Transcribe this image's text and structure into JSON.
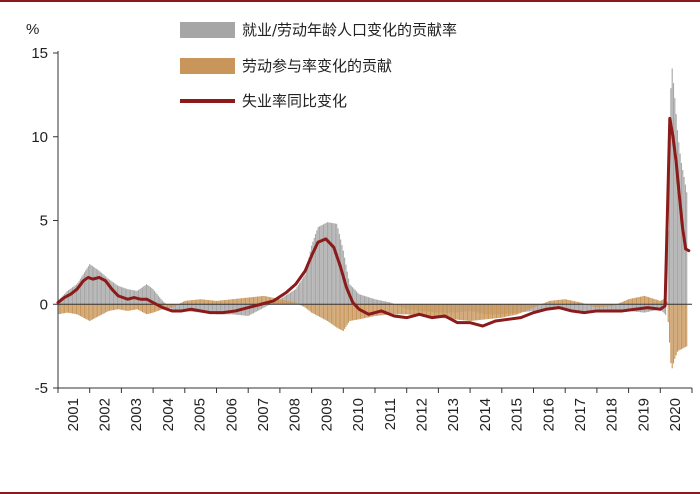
{
  "chart_data": {
    "type": "bar+line",
    "y_unit_label": "%",
    "ylim": [
      -5,
      15
    ],
    "yticks": [
      -5,
      0,
      5,
      10,
      15
    ],
    "xlim": [
      2001,
      2021
    ],
    "xticks": [
      "2001",
      "2002",
      "2003",
      "2004",
      "2005",
      "2006",
      "2007",
      "2008",
      "2009",
      "2010",
      "2011",
      "2012",
      "2013",
      "2014",
      "2015",
      "2016",
      "2017",
      "2018",
      "2019",
      "2020"
    ],
    "grid": false,
    "legend_position": "top",
    "series": [
      {
        "name": "就业/劳动年龄人口变化的贡献率",
        "type": "bar",
        "color": "#a6a6a6",
        "points": [
          [
            2001.0,
            0.2
          ],
          [
            2001.3,
            0.8
          ],
          [
            2001.6,
            1.2
          ],
          [
            2001.8,
            1.8
          ],
          [
            2002.0,
            2.4
          ],
          [
            2002.3,
            2.0
          ],
          [
            2002.6,
            1.5
          ],
          [
            2002.9,
            1.1
          ],
          [
            2003.2,
            0.9
          ],
          [
            2003.5,
            0.8
          ],
          [
            2003.8,
            1.2
          ],
          [
            2004.0,
            0.9
          ],
          [
            2004.3,
            0.2
          ],
          [
            2004.6,
            -0.3
          ],
          [
            2005.0,
            -0.4
          ],
          [
            2005.5,
            -0.5
          ],
          [
            2006.0,
            -0.6
          ],
          [
            2006.5,
            -0.6
          ],
          [
            2007.0,
            -0.7
          ],
          [
            2007.5,
            -0.2
          ],
          [
            2008.0,
            0.3
          ],
          [
            2008.5,
            0.9
          ],
          [
            2008.8,
            1.8
          ],
          [
            2009.0,
            3.5
          ],
          [
            2009.2,
            4.6
          ],
          [
            2009.5,
            4.9
          ],
          [
            2009.8,
            4.8
          ],
          [
            2010.0,
            3.2
          ],
          [
            2010.2,
            1.2
          ],
          [
            2010.5,
            0.6
          ],
          [
            2011.0,
            0.3
          ],
          [
            2011.5,
            0.1
          ],
          [
            2012.0,
            -0.3
          ],
          [
            2012.5,
            -0.4
          ],
          [
            2013.0,
            -0.5
          ],
          [
            2013.5,
            -0.5
          ],
          [
            2014.0,
            -0.4
          ],
          [
            2014.5,
            -0.6
          ],
          [
            2015.0,
            -0.6
          ],
          [
            2015.5,
            -0.5
          ],
          [
            2016.0,
            -0.4
          ],
          [
            2016.5,
            -0.3
          ],
          [
            2017.0,
            -0.3
          ],
          [
            2017.5,
            -0.4
          ],
          [
            2018.0,
            -0.4
          ],
          [
            2018.5,
            -0.5
          ],
          [
            2019.0,
            -0.4
          ],
          [
            2019.5,
            -0.5
          ],
          [
            2020.0,
            -0.3
          ],
          [
            2020.2,
            -0.7
          ],
          [
            2020.35,
            14.6
          ],
          [
            2020.45,
            12.5
          ],
          [
            2020.55,
            10.2
          ],
          [
            2020.65,
            8.6
          ],
          [
            2020.75,
            7.6
          ],
          [
            2020.85,
            6.5
          ]
        ]
      },
      {
        "name": "劳动参与率变化的贡献",
        "type": "bar",
        "color": "#c8965a",
        "points": [
          [
            2001.0,
            -0.6
          ],
          [
            2001.3,
            -0.5
          ],
          [
            2001.6,
            -0.6
          ],
          [
            2001.8,
            -0.8
          ],
          [
            2002.0,
            -1.0
          ],
          [
            2002.3,
            -0.7
          ],
          [
            2002.6,
            -0.4
          ],
          [
            2002.9,
            -0.3
          ],
          [
            2003.2,
            -0.4
          ],
          [
            2003.5,
            -0.3
          ],
          [
            2003.8,
            -0.6
          ],
          [
            2004.0,
            -0.5
          ],
          [
            2004.3,
            -0.3
          ],
          [
            2004.6,
            -0.2
          ],
          [
            2005.0,
            0.2
          ],
          [
            2005.5,
            0.3
          ],
          [
            2006.0,
            0.2
          ],
          [
            2006.5,
            0.3
          ],
          [
            2007.0,
            0.4
          ],
          [
            2007.5,
            0.5
          ],
          [
            2008.0,
            0.3
          ],
          [
            2008.5,
            0.1
          ],
          [
            2008.8,
            -0.2
          ],
          [
            2009.0,
            -0.5
          ],
          [
            2009.2,
            -0.7
          ],
          [
            2009.5,
            -1.0
          ],
          [
            2009.8,
            -1.4
          ],
          [
            2010.0,
            -1.6
          ],
          [
            2010.2,
            -1.0
          ],
          [
            2010.5,
            -0.9
          ],
          [
            2011.0,
            -0.7
          ],
          [
            2011.5,
            -0.6
          ],
          [
            2012.0,
            -0.6
          ],
          [
            2012.5,
            -0.7
          ],
          [
            2013.0,
            -0.8
          ],
          [
            2013.5,
            -0.9
          ],
          [
            2014.0,
            -1.0
          ],
          [
            2014.5,
            -0.9
          ],
          [
            2015.0,
            -0.8
          ],
          [
            2015.5,
            -0.6
          ],
          [
            2016.0,
            -0.2
          ],
          [
            2016.5,
            0.2
          ],
          [
            2017.0,
            0.3
          ],
          [
            2017.5,
            0.1
          ],
          [
            2018.0,
            -0.2
          ],
          [
            2018.5,
            -0.1
          ],
          [
            2019.0,
            0.3
          ],
          [
            2019.5,
            0.5
          ],
          [
            2020.0,
            0.2
          ],
          [
            2020.2,
            0.4
          ],
          [
            2020.35,
            -4.0
          ],
          [
            2020.45,
            -3.3
          ],
          [
            2020.55,
            -2.8
          ],
          [
            2020.65,
            -2.7
          ],
          [
            2020.75,
            -2.6
          ],
          [
            2020.85,
            -2.5
          ]
        ]
      },
      {
        "name": "失业率同比变化",
        "type": "line",
        "color": "#8b1a1a",
        "points": [
          [
            2001.0,
            0.1
          ],
          [
            2001.2,
            0.4
          ],
          [
            2001.4,
            0.6
          ],
          [
            2001.6,
            0.9
          ],
          [
            2001.8,
            1.4
          ],
          [
            2001.95,
            1.6
          ],
          [
            2002.1,
            1.5
          ],
          [
            2002.3,
            1.6
          ],
          [
            2002.5,
            1.4
          ],
          [
            2002.7,
            0.9
          ],
          [
            2002.9,
            0.5
          ],
          [
            2003.2,
            0.3
          ],
          [
            2003.4,
            0.4
          ],
          [
            2003.6,
            0.3
          ],
          [
            2003.8,
            0.3
          ],
          [
            2004.0,
            0.1
          ],
          [
            2004.3,
            -0.2
          ],
          [
            2004.6,
            -0.4
          ],
          [
            2004.9,
            -0.4
          ],
          [
            2005.2,
            -0.3
          ],
          [
            2005.5,
            -0.4
          ],
          [
            2005.8,
            -0.5
          ],
          [
            2006.2,
            -0.5
          ],
          [
            2006.6,
            -0.4
          ],
          [
            2007.0,
            -0.2
          ],
          [
            2007.4,
            0.0
          ],
          [
            2007.8,
            0.2
          ],
          [
            2008.2,
            0.7
          ],
          [
            2008.5,
            1.2
          ],
          [
            2008.8,
            2.0
          ],
          [
            2009.0,
            2.9
          ],
          [
            2009.2,
            3.7
          ],
          [
            2009.45,
            3.9
          ],
          [
            2009.7,
            3.4
          ],
          [
            2009.9,
            2.3
          ],
          [
            2010.1,
            1.0
          ],
          [
            2010.3,
            0.1
          ],
          [
            2010.5,
            -0.3
          ],
          [
            2010.8,
            -0.6
          ],
          [
            2011.2,
            -0.4
          ],
          [
            2011.6,
            -0.7
          ],
          [
            2012.0,
            -0.8
          ],
          [
            2012.4,
            -0.6
          ],
          [
            2012.8,
            -0.8
          ],
          [
            2013.2,
            -0.7
          ],
          [
            2013.6,
            -1.1
          ],
          [
            2014.0,
            -1.1
          ],
          [
            2014.4,
            -1.3
          ],
          [
            2014.8,
            -1.0
          ],
          [
            2015.2,
            -0.9
          ],
          [
            2015.6,
            -0.8
          ],
          [
            2016.0,
            -0.5
          ],
          [
            2016.4,
            -0.3
          ],
          [
            2016.8,
            -0.2
          ],
          [
            2017.2,
            -0.4
          ],
          [
            2017.6,
            -0.5
          ],
          [
            2018.0,
            -0.4
          ],
          [
            2018.4,
            -0.4
          ],
          [
            2018.8,
            -0.4
          ],
          [
            2019.2,
            -0.3
          ],
          [
            2019.6,
            -0.2
          ],
          [
            2020.0,
            -0.3
          ],
          [
            2020.15,
            -0.1
          ],
          [
            2020.3,
            11.1
          ],
          [
            2020.4,
            10.0
          ],
          [
            2020.5,
            8.5
          ],
          [
            2020.6,
            6.5
          ],
          [
            2020.7,
            4.6
          ],
          [
            2020.8,
            3.3
          ],
          [
            2020.9,
            3.2
          ]
        ]
      }
    ]
  }
}
